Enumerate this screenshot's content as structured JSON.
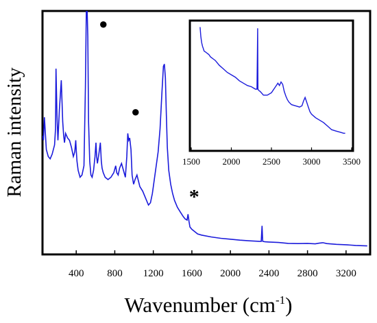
{
  "chart_data": [
    {
      "type": "line",
      "panel": "main",
      "xlabel": "Wavenumber (cm",
      "xlabel_sup": "-1",
      "xlabel_close": ")",
      "ylabel": "Raman intensity",
      "xlim": [
        50,
        3450
      ],
      "ylim": [
        0,
        100
      ],
      "x_ticks": [
        "400",
        "800",
        "1200",
        "1600",
        "2000",
        "2400",
        "2800",
        "3200"
      ],
      "y_ticks_labeled": false,
      "line_color": "#1a1adb",
      "series": [
        {
          "x": [
            50,
            60,
            70,
            80,
            90,
            110,
            130,
            150,
            175,
            185,
            190,
            200,
            210,
            225,
            245,
            260,
            270,
            278,
            290,
            310,
            330,
            350,
            370,
            385,
            395,
            400,
            408,
            420,
            440,
            460,
            480,
            495,
            505,
            512,
            520,
            528,
            540,
            552,
            565,
            580,
            595,
            605,
            612,
            620,
            635,
            650,
            660,
            668,
            680,
            700,
            730,
            760,
            790,
            810,
            820,
            835,
            850,
            870,
            890,
            910,
            925,
            935,
            945,
            955,
            968,
            980,
            995,
            1010,
            1030,
            1060,
            1090,
            1120,
            1150,
            1170,
            1190,
            1210,
            1230,
            1250,
            1270,
            1290,
            1305,
            1315,
            1325,
            1335,
            1345,
            1360,
            1380,
            1400,
            1420,
            1450,
            1480,
            1510,
            1530,
            1550,
            1560,
            1570,
            1580,
            1600,
            1630,
            1660,
            1700,
            1800,
            1900,
            2000,
            2100,
            2200,
            2300,
            2320,
            2328,
            2335,
            2345,
            2360,
            2400,
            2500,
            2600,
            2700,
            2800,
            2880,
            2920,
            2960,
            3000,
            3100,
            3200,
            3300,
            3420
          ],
          "y": [
            49,
            47,
            57,
            50,
            43,
            40,
            39,
            41,
            45,
            52,
            78,
            58,
            47,
            60,
            73,
            55,
            49,
            46,
            50,
            48,
            47,
            44,
            40,
            42,
            47,
            43,
            38,
            34,
            31,
            32,
            36,
            70,
            105,
            105,
            92,
            55,
            38,
            32,
            31,
            34,
            40,
            46,
            40,
            37,
            41,
            46,
            38,
            35,
            33,
            31,
            30,
            31,
            33,
            36,
            33,
            32,
            35,
            37,
            34,
            31,
            40,
            50,
            47,
            48,
            43,
            32,
            28,
            30,
            32,
            27,
            25,
            22,
            19,
            20,
            24,
            30,
            36,
            42,
            52,
            68,
            79,
            80,
            74,
            58,
            44,
            34,
            28,
            24,
            21,
            18,
            16,
            14,
            13,
            12.5,
            15,
            12,
            9.5,
            8.5,
            7.5,
            6.5,
            6,
            5.2,
            4.6,
            4.2,
            3.8,
            3.5,
            3.3,
            3.3,
            10,
            3.3,
            3.2,
            3.1,
            3.0,
            2.8,
            2.4,
            2.3,
            2.4,
            2.2,
            2.5,
            2.7,
            2.3,
            2.0,
            1.8,
            1.5,
            1.3
          ]
        }
      ],
      "markers": [
        {
          "symbol": "●",
          "x": 610,
          "y": 97
        },
        {
          "symbol": "●",
          "x": 945,
          "y": 59
        },
        {
          "symbol": "*",
          "x": 1560,
          "y": 18
        }
      ]
    },
    {
      "type": "line",
      "panel": "inset",
      "xlim": [
        1500,
        3500
      ],
      "ylim": [
        0,
        100
      ],
      "x_ticks": [
        "1500",
        "2000",
        "2500",
        "3000",
        "3500"
      ],
      "y_ticks_labeled": false,
      "line_color": "#1a1adb",
      "series": [
        {
          "x": [
            1610,
            1620,
            1630,
            1640,
            1650,
            1660,
            1680,
            1700,
            1720,
            1740,
            1760,
            1780,
            1800,
            1850,
            1900,
            1950,
            2000,
            2050,
            2100,
            2150,
            2200,
            2250,
            2300,
            2320,
            2328,
            2332,
            2340,
            2360,
            2400,
            2450,
            2500,
            2550,
            2580,
            2600,
            2620,
            2640,
            2660,
            2680,
            2700,
            2720,
            2750,
            2800,
            2850,
            2880,
            2900,
            2920,
            2940,
            2960,
            2980,
            3000,
            3050,
            3100,
            3150,
            3200,
            3250,
            3300,
            3350,
            3400,
            3420
          ],
          "y": [
            98,
            90,
            85,
            82,
            80,
            78,
            77,
            76,
            75,
            73,
            72,
            71,
            70,
            66,
            63,
            60,
            58,
            56,
            53,
            51,
            49,
            48,
            46,
            46,
            97,
            46,
            45,
            44,
            41,
            41,
            43,
            48,
            51,
            49,
            52,
            50,
            44,
            40,
            37,
            35,
            33,
            32,
            31,
            32,
            36,
            39,
            35,
            31,
            27,
            25,
            22,
            20,
            18,
            15,
            12,
            11,
            10,
            9,
            9
          ]
        }
      ]
    }
  ]
}
